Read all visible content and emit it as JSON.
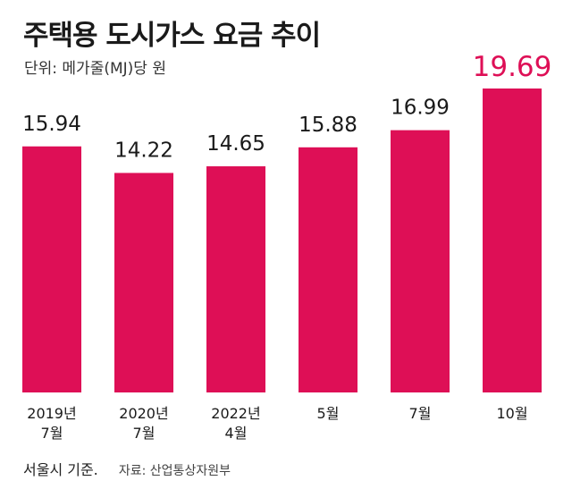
{
  "header": {
    "title": "주택용 도시가스 요금 추이",
    "unit": "단위: 메가줄(MJ)당 원"
  },
  "footer": {
    "credit": "서울시 기준.",
    "source": "자료: 산업통상자원부"
  },
  "colors": {
    "bar": "#de0f56",
    "highlight_label": "#de0f56",
    "label": "#1a1a1a"
  },
  "chart_data": {
    "type": "bar",
    "title": "주택용 도시가스 요금 추이",
    "ylabel": "단위: 메가줄(MJ)당 원",
    "categories": [
      [
        "2019년",
        "7월"
      ],
      [
        "2020년",
        "7월"
      ],
      [
        "2022년",
        "4월"
      ],
      [
        "5월"
      ],
      [
        "7월"
      ],
      [
        "10월"
      ]
    ],
    "values": [
      15.94,
      14.22,
      14.65,
      15.88,
      16.99,
      19.69
    ],
    "value_labels": [
      "15.94",
      "14.22",
      "14.65",
      "15.88",
      "16.99",
      "19.69"
    ],
    "highlight_index": 5,
    "grid": false,
    "legend": "none"
  }
}
